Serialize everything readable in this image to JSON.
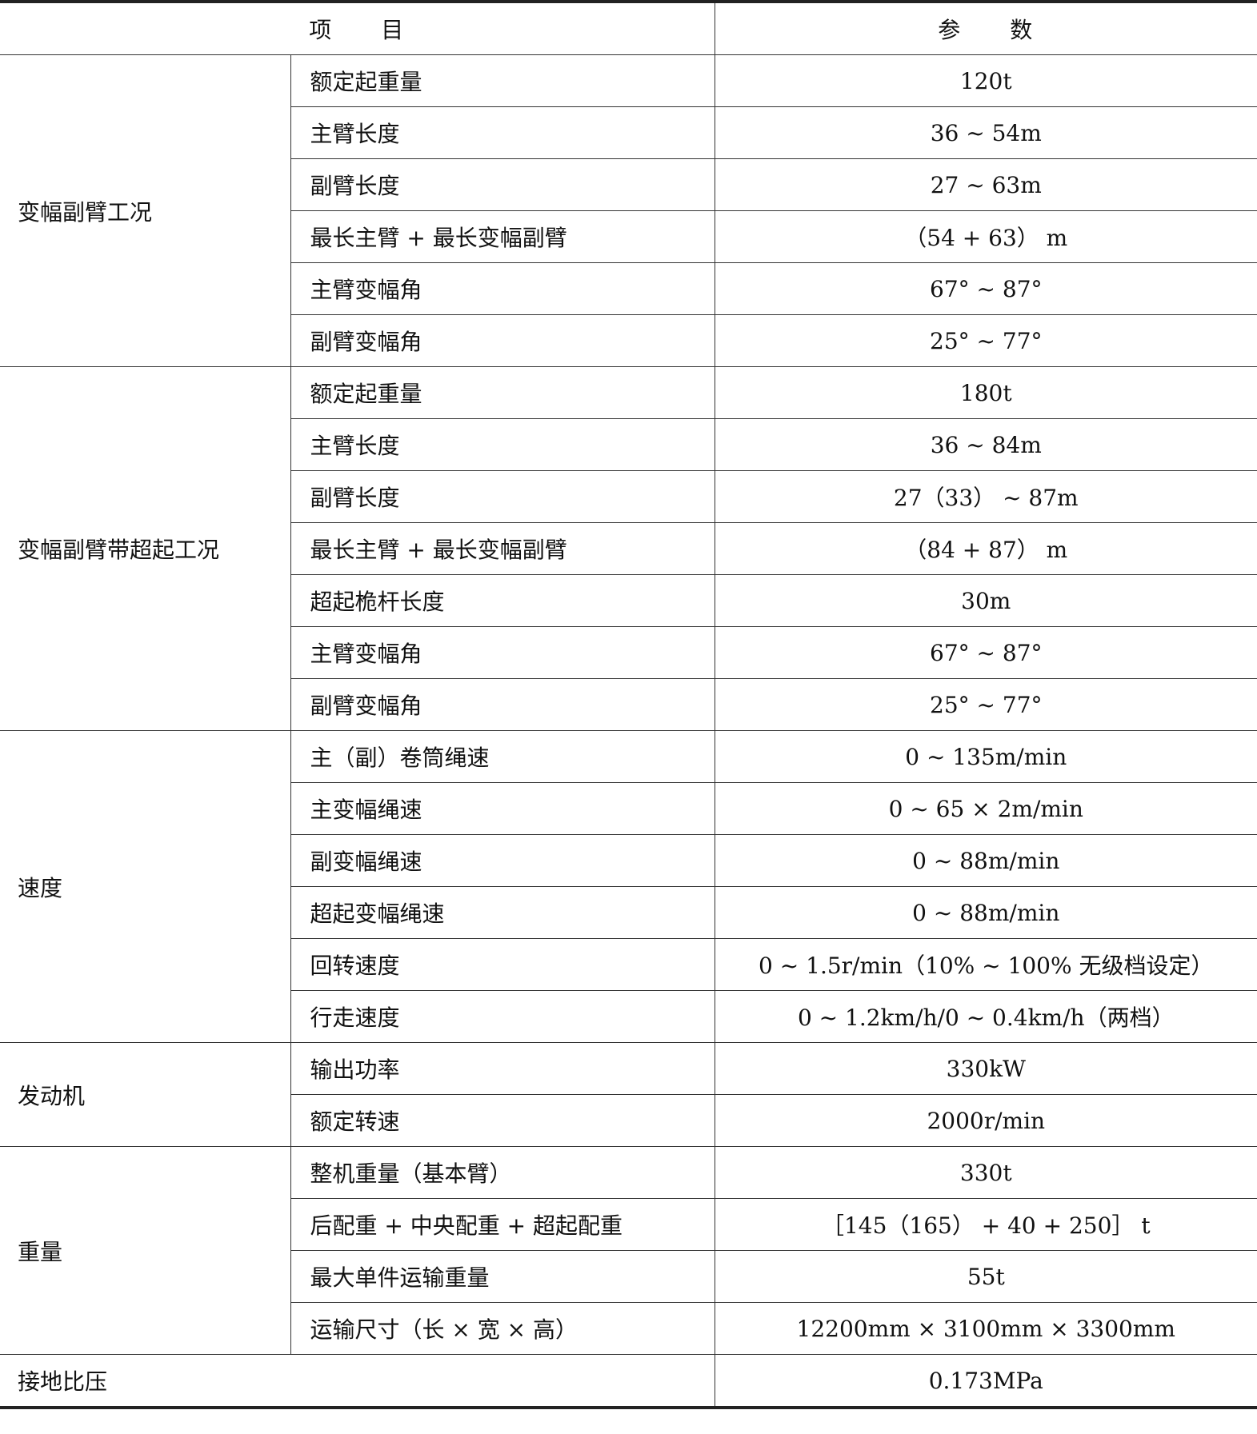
{
  "header": {
    "item": "项　　目",
    "param": "参　　数"
  },
  "groups": [
    {
      "name": "变幅副臂工况",
      "rows": [
        [
          "额定起重量",
          "120t"
        ],
        [
          "主臂长度",
          "36 ~ 54m"
        ],
        [
          "副臂长度",
          "27 ~ 63m"
        ],
        [
          "最长主臂 + 最长变幅副臂",
          "（54 + 63） m"
        ],
        [
          "主臂变幅角",
          "67° ~ 87°"
        ],
        [
          "副臂变幅角",
          "25° ~ 77°"
        ]
      ]
    },
    {
      "name": "变幅副臂带超起工况",
      "rows": [
        [
          "额定起重量",
          "180t"
        ],
        [
          "主臂长度",
          "36 ~ 84m"
        ],
        [
          "副臂长度",
          "27（33） ~ 87m"
        ],
        [
          "最长主臂 + 最长变幅副臂",
          "（84 + 87） m"
        ],
        [
          "超起桅杆长度",
          "30m"
        ],
        [
          "主臂变幅角",
          "67° ~ 87°"
        ],
        [
          "副臂变幅角",
          "25° ~ 77°"
        ]
      ]
    },
    {
      "name": "速度",
      "rows": [
        [
          "主（副）卷筒绳速",
          "0 ~ 135m/min"
        ],
        [
          "主变幅绳速",
          "0 ~ 65 × 2m/min"
        ],
        [
          "副变幅绳速",
          "0 ~ 88m/min"
        ],
        [
          "超起变幅绳速",
          "0 ~ 88m/min"
        ],
        [
          "回转速度",
          "0 ~ 1.5r/min（10% ~ 100% 无级档设定）"
        ],
        [
          "行走速度",
          "0 ~ 1.2km/h/0 ~ 0.4km/h（两档）"
        ]
      ]
    },
    {
      "name": "发动机",
      "rows": [
        [
          "输出功率",
          "330kW"
        ],
        [
          "额定转速",
          "2000r/min"
        ]
      ]
    },
    {
      "name": "重量",
      "rows": [
        [
          "整机重量（基本臂）",
          "330t"
        ],
        [
          "后配重 + 中央配重 + 超起配重",
          "［145（165） + 40 + 250］ t"
        ],
        [
          "最大单件运输重量",
          "55t"
        ],
        [
          "运输尺寸（长 × 宽 × 高）",
          "12200mm × 3100mm × 3300mm"
        ]
      ]
    }
  ],
  "footer": {
    "name": "接地比压",
    "value": "0.173MPa"
  }
}
